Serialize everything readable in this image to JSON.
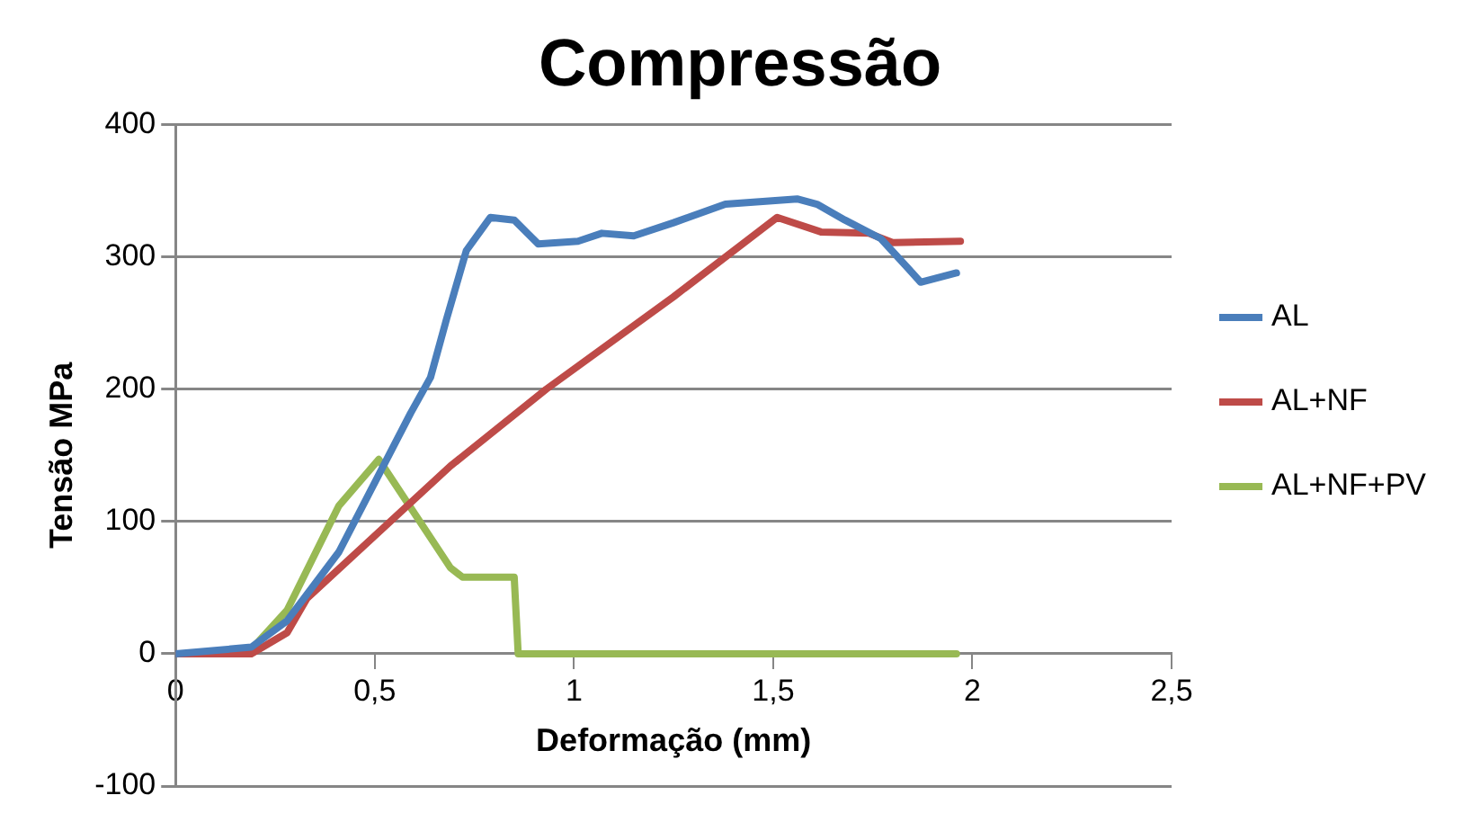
{
  "chart_data": {
    "type": "line",
    "title": "Compressão",
    "xlabel": "Deformação (mm)",
    "ylabel": "Tensão MPa",
    "xlim": [
      0,
      2.5
    ],
    "xticks": [
      0,
      {
        "value": 0.5,
        "label": "0,5"
      },
      1,
      {
        "value": 1.5,
        "label": "1,5"
      },
      2,
      {
        "value": 2.5,
        "label": "2,5"
      }
    ],
    "ylim": [
      -100,
      400
    ],
    "yticks": [
      -100,
      0,
      100,
      200,
      300,
      400
    ],
    "grid": "y",
    "legend": "right",
    "marker": "none",
    "line_style": "solid",
    "series": [
      {
        "name": "AL",
        "color": "#4a7ebb",
        "x": [
          0,
          0.19,
          0.28,
          0.41,
          0.59,
          0.64,
          0.68,
          0.73,
          0.79,
          0.85,
          0.91,
          1.01,
          1.07,
          1.15,
          1.25,
          1.38,
          1.56,
          1.61,
          1.68,
          1.77,
          1.84,
          1.87,
          1.96
        ],
        "values": [
          0,
          5,
          25,
          77,
          182,
          209,
          253,
          305,
          330,
          328,
          310,
          312,
          318,
          316,
          326,
          340,
          344,
          340,
          328,
          314,
          291,
          281,
          288
        ]
      },
      {
        "name": "AL+NF",
        "color": "#be4b48",
        "x": [
          0,
          0.19,
          0.28,
          0.33,
          0.69,
          0.93,
          1.25,
          1.51,
          1.62,
          1.74,
          1.8,
          1.97
        ],
        "values": [
          0,
          0,
          16,
          42,
          142,
          200,
          270,
          330,
          319,
          318,
          311,
          312
        ]
      },
      {
        "name": "AL+NF+PV",
        "color": "#98b954",
        "x": [
          0,
          0.18,
          0.28,
          0.41,
          0.51,
          0.69,
          0.72,
          0.85,
          0.86,
          1.96
        ],
        "values": [
          0,
          0,
          33,
          112,
          147,
          65,
          58,
          58,
          0,
          0
        ]
      }
    ]
  }
}
